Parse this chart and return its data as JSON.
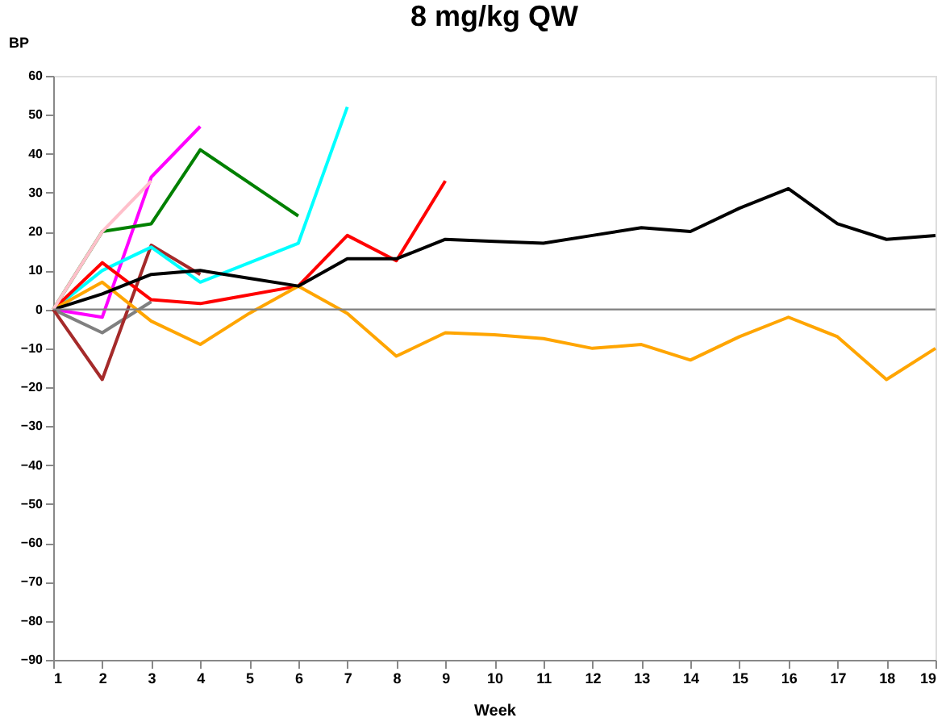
{
  "chart_data": {
    "type": "line",
    "title": "8 mg/kg QW",
    "xlabel": "Week",
    "ylabel": "BP",
    "xlim": [
      1,
      19
    ],
    "xticks": [
      1,
      2,
      3,
      4,
      5,
      6,
      7,
      8,
      9,
      10,
      11,
      12,
      13,
      14,
      15,
      16,
      17,
      18,
      19
    ],
    "ylim": [
      -90,
      60
    ],
    "yticks": [
      -90,
      -80,
      -70,
      -60,
      -50,
      -40,
      -30,
      -20,
      -10,
      0,
      10,
      20,
      30,
      40,
      50,
      60
    ],
    "grid": false,
    "legend": false,
    "marker": "none",
    "line_style": "solid",
    "ref_lines": [
      {
        "axis": "y",
        "value": 0,
        "color": "#808080"
      }
    ],
    "series": [
      {
        "color": "#ff00ff",
        "x": [
          1,
          2,
          3,
          4
        ],
        "values": [
          0,
          -2,
          34,
          47
        ]
      },
      {
        "color": "#808080",
        "x": [
          1,
          2,
          3
        ],
        "values": [
          0,
          -6,
          2
        ]
      },
      {
        "color": "#a52a2a",
        "x": [
          1,
          2,
          3,
          4
        ],
        "values": [
          0,
          -18,
          16.5,
          9
        ]
      },
      {
        "color": "#008000",
        "x": [
          1,
          2,
          3,
          4,
          6
        ],
        "values": [
          0,
          20,
          22,
          41,
          24
        ]
      },
      {
        "color": "#00ffff",
        "x": [
          1,
          2,
          3,
          4,
          6,
          7
        ],
        "values": [
          0,
          10,
          16,
          7,
          17,
          52
        ]
      },
      {
        "color": "#ff0000",
        "x": [
          1,
          2,
          3,
          4,
          6,
          7,
          8,
          9
        ],
        "values": [
          0,
          12,
          2.5,
          1.5,
          6,
          19,
          12.5,
          33
        ]
      },
      {
        "color": "#ffa500",
        "x": [
          1,
          2,
          3,
          4,
          5,
          6,
          7,
          8,
          9,
          10,
          11,
          12,
          13,
          14,
          15,
          16,
          17,
          18,
          19
        ],
        "values": [
          0,
          7,
          -3,
          -9,
          -1,
          6,
          -1,
          -12,
          -6,
          -6.5,
          -7.5,
          -10,
          -9,
          -13,
          -7,
          -2,
          -7,
          -18,
          -10
        ]
      },
      {
        "color": "#000000",
        "x": [
          1,
          2,
          3,
          4,
          5,
          6,
          7,
          8,
          9,
          10,
          11,
          12,
          13,
          14,
          15,
          16,
          17,
          18,
          19
        ],
        "values": [
          0,
          4,
          9,
          10,
          8,
          6,
          13,
          13,
          18,
          17.5,
          17,
          19,
          21,
          20,
          26,
          31,
          22,
          18,
          19
        ]
      },
      {
        "color": "#ffc0cb",
        "x": [
          1,
          2,
          3
        ],
        "values": [
          0,
          20,
          33
        ]
      }
    ]
  }
}
